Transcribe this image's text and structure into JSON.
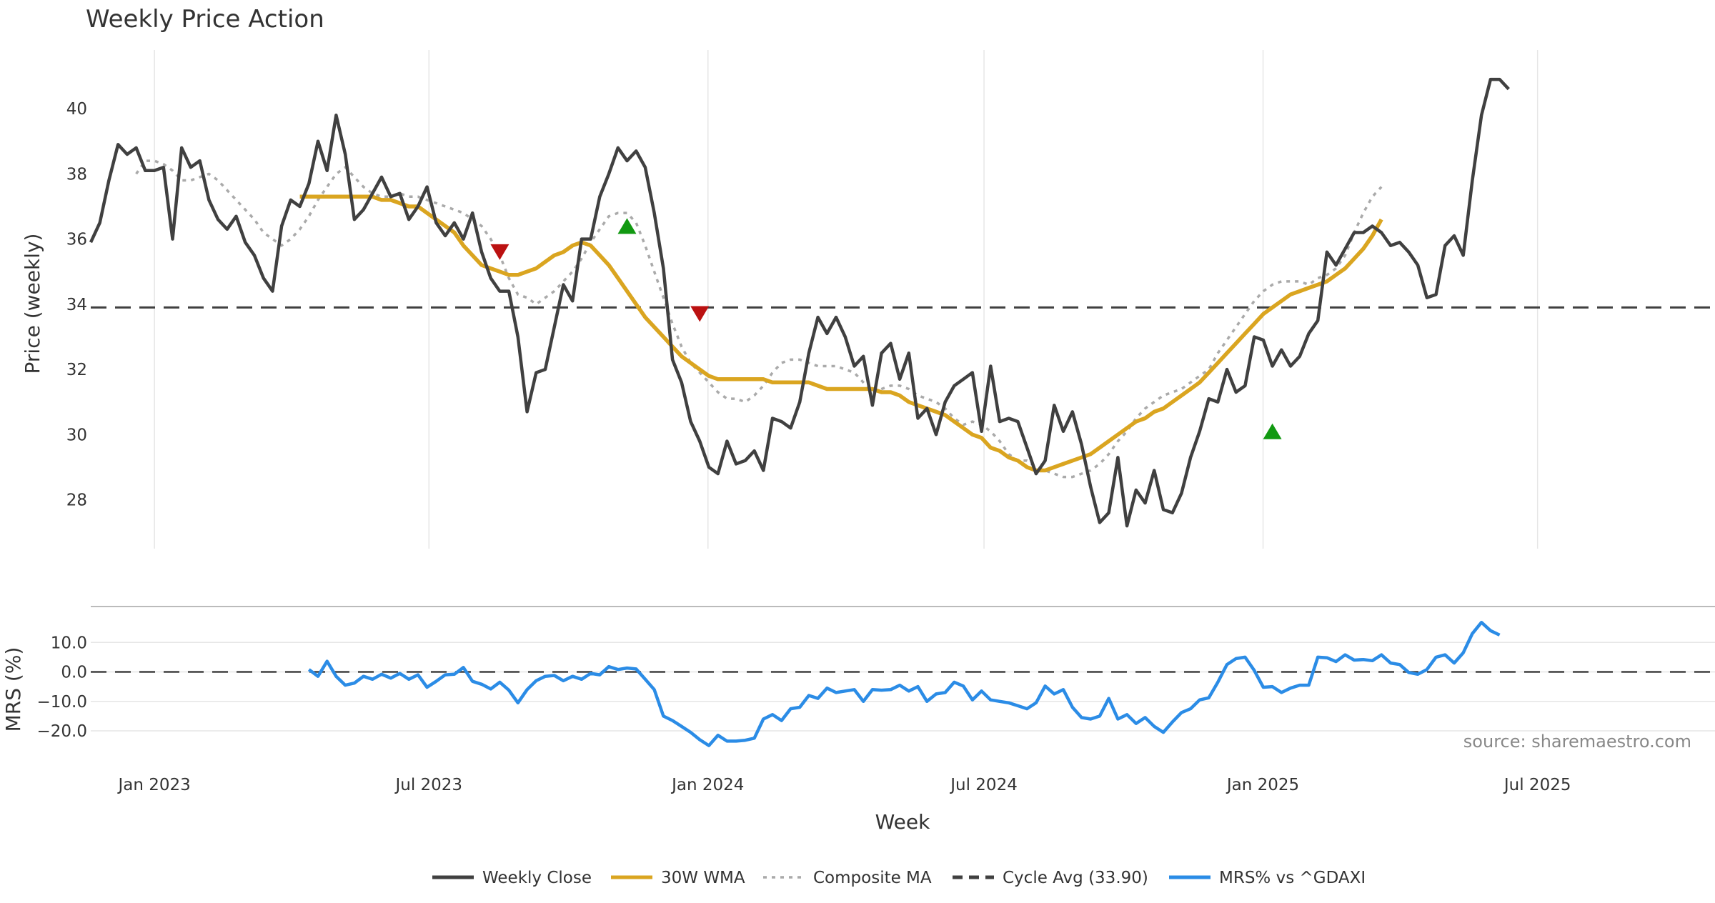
{
  "chart_data": {
    "type": "line",
    "title": "Weekly Price Action",
    "xlabel": "Week",
    "x_tick_labels": [
      "Jan 2023",
      "Jul 2023",
      "Jan 2024",
      "Jul 2024",
      "Jan 2025",
      "Jul 2025"
    ],
    "x_tick_dates": [
      "2023-01-01",
      "2023-07-01",
      "2024-01-01",
      "2024-07-01",
      "2025-01-01",
      "2025-07-01"
    ],
    "x_range": [
      "2022-11-20",
      "2025-10-26"
    ],
    "price_panel": {
      "ylabel": "Price (weekly)",
      "ylim": [
        26.5,
        41.8
      ],
      "y_ticks": [
        "28",
        "30",
        "32",
        "34",
        "36",
        "38",
        "40"
      ],
      "weekly_close": [
        35.9,
        36.5,
        37.8,
        38.9,
        38.6,
        38.8,
        38.1,
        38.1,
        38.2,
        36.0,
        38.8,
        38.2,
        38.4,
        37.2,
        36.6,
        36.3,
        36.7,
        35.9,
        35.5,
        34.8,
        34.4,
        36.4,
        37.2,
        37.0,
        37.7,
        39.0,
        38.1,
        39.8,
        38.6,
        36.6,
        36.9,
        37.4,
        37.9,
        37.3,
        37.4,
        36.6,
        37.0,
        37.6,
        36.5,
        36.1,
        36.5,
        36.0,
        36.8,
        35.6,
        34.8,
        34.4,
        34.4,
        33.0,
        30.7,
        31.9,
        32.0,
        33.3,
        34.6,
        34.1,
        36.0,
        36.0,
        37.3,
        38.0,
        38.8,
        38.4,
        38.7,
        38.2,
        36.8,
        35.1,
        32.3,
        31.6,
        30.4,
        29.8,
        29.0,
        28.8,
        29.8,
        29.1,
        29.2,
        29.5,
        28.9,
        30.5,
        30.4,
        30.2,
        31.0,
        32.5,
        33.6,
        33.1,
        33.6,
        33.0,
        32.1,
        32.4,
        30.9,
        32.5,
        32.8,
        31.7,
        32.5,
        30.5,
        30.8,
        30.0,
        31.0,
        31.5,
        31.7,
        31.9,
        30.1,
        32.1,
        30.4,
        30.5,
        30.4,
        29.6,
        28.8,
        29.2,
        30.9,
        30.1,
        30.7,
        29.7,
        28.4,
        27.3,
        27.6,
        29.3,
        27.2,
        28.3,
        27.9,
        28.9,
        27.7,
        27.6,
        28.2,
        29.3,
        30.1,
        31.1,
        31.0,
        32.0,
        31.3,
        31.5,
        33.0,
        32.9,
        32.1,
        32.6,
        32.1,
        32.4,
        33.1,
        33.5,
        35.6,
        35.2,
        35.7,
        36.2,
        36.2,
        36.4,
        36.2,
        35.8,
        35.9,
        35.6,
        35.2,
        34.2,
        34.3,
        35.8,
        36.1,
        35.5,
        37.8,
        39.8,
        40.9,
        40.9,
        40.6
      ],
      "wma_30w": {
        "start_index": 23,
        "values": [
          37.3,
          37.3,
          37.3,
          37.3,
          37.3,
          37.3,
          37.3,
          37.3,
          37.3,
          37.2,
          37.2,
          37.1,
          37.0,
          37.0,
          36.8,
          36.6,
          36.4,
          36.2,
          35.8,
          35.5,
          35.2,
          35.1,
          35.0,
          34.9,
          34.9,
          35.0,
          35.1,
          35.3,
          35.5,
          35.6,
          35.8,
          35.9,
          35.8,
          35.5,
          35.2,
          34.8,
          34.4,
          34.0,
          33.6,
          33.3,
          33.0,
          32.7,
          32.4,
          32.2,
          32.0,
          31.8,
          31.7,
          31.7,
          31.7,
          31.7,
          31.7,
          31.7,
          31.6,
          31.6,
          31.6,
          31.6,
          31.6,
          31.5,
          31.4,
          31.4,
          31.4,
          31.4,
          31.4,
          31.4,
          31.3,
          31.3,
          31.2,
          31.0,
          30.9,
          30.8,
          30.7,
          30.6,
          30.4,
          30.2,
          30.0,
          29.9,
          29.6,
          29.5,
          29.3,
          29.2,
          29.0,
          28.9,
          28.9,
          29.0,
          29.1,
          29.2,
          29.3,
          29.4,
          29.6,
          29.8,
          30.0,
          30.2,
          30.4,
          30.5,
          30.7,
          30.8,
          31.0,
          31.2,
          31.4,
          31.6,
          31.9,
          32.2,
          32.5,
          32.8,
          33.1,
          33.4,
          33.7,
          33.9,
          34.1,
          34.3,
          34.4,
          34.5,
          34.6,
          34.7,
          34.9,
          35.1,
          35.4,
          35.7,
          36.1,
          36.6
        ]
      },
      "composite_ma": {
        "start_index": 5,
        "values": [
          38.0,
          38.4,
          38.4,
          38.3,
          38.1,
          37.8,
          37.8,
          37.9,
          38.0,
          37.8,
          37.5,
          37.2,
          36.9,
          36.6,
          36.2,
          36.0,
          35.8,
          36.0,
          36.3,
          36.7,
          37.2,
          37.6,
          38.0,
          38.2,
          37.9,
          37.6,
          37.4,
          37.3,
          37.3,
          37.4,
          37.3,
          37.3,
          37.2,
          37.1,
          37.0,
          36.9,
          36.8,
          36.6,
          36.4,
          36.0,
          35.5,
          34.8,
          34.3,
          34.2,
          34.0,
          34.2,
          34.4,
          34.7,
          35.0,
          35.4,
          35.9,
          36.3,
          36.7,
          36.8,
          36.8,
          36.5,
          35.8,
          35.0,
          34.2,
          33.4,
          32.7,
          32.2,
          31.9,
          31.6,
          31.3,
          31.1,
          31.1,
          31.0,
          31.2,
          31.5,
          31.9,
          32.2,
          32.3,
          32.3,
          32.2,
          32.1,
          32.1,
          32.1,
          32.0,
          31.9,
          31.6,
          31.3,
          31.4,
          31.5,
          31.5,
          31.4,
          31.2,
          31.1,
          31.0,
          30.8,
          30.5,
          30.3,
          30.4,
          30.3,
          30.1,
          29.8,
          29.4,
          29.2,
          29.2,
          29.0,
          28.9,
          28.8,
          28.7,
          28.7,
          28.8,
          28.9,
          29.1,
          29.4,
          29.8,
          30.1,
          30.5,
          30.8,
          31.0,
          31.2,
          31.3,
          31.4,
          31.6,
          31.8,
          32.0,
          32.5,
          32.9,
          33.3,
          33.7,
          34.1,
          34.4,
          34.6,
          34.7,
          34.7,
          34.7,
          34.6,
          34.8,
          34.9,
          35.1,
          35.5,
          36.2,
          36.8,
          37.3,
          37.6
        ]
      },
      "cycle_avg": 33.9,
      "buy_signals": [
        {
          "index": 59,
          "value": 36.4
        },
        {
          "index": 130,
          "value": 30.1
        }
      ],
      "sell_signals": [
        {
          "index": 45,
          "value": 35.6
        },
        {
          "index": 67,
          "value": 33.7
        }
      ]
    },
    "mrs_panel": {
      "ylabel": "MRS (%)",
      "ylim": [
        -28,
        20
      ],
      "y_ticks": [
        "10.0",
        "0.0",
        "−10.0",
        "−20.0"
      ],
      "start_index": 24,
      "values": [
        0.8,
        -1.5,
        3.6,
        -1.5,
        -4.5,
        -3.8,
        -1.5,
        -2.5,
        -0.8,
        -2.1,
        -0.5,
        -2.5,
        -1.0,
        -5.2,
        -3.2,
        -1.0,
        -0.8,
        1.5,
        -3.2,
        -4.2,
        -5.8,
        -3.5,
        -6.2,
        -10.5,
        -6.0,
        -3.0,
        -1.5,
        -1.2,
        -3.0,
        -1.5,
        -2.5,
        -0.5,
        -1.0,
        1.8,
        0.8,
        1.3,
        1.0,
        -2.5,
        -6.0,
        -15.0,
        -16.5,
        -18.5,
        -20.5,
        -23.0,
        -25.0,
        -21.5,
        -23.5,
        -23.5,
        -23.2,
        -22.5,
        -16.0,
        -14.5,
        -16.5,
        -12.5,
        -12.0,
        -8.0,
        -9.0,
        -5.5,
        -7.0,
        -6.5,
        -6.0,
        -10.0,
        -6.0,
        -6.2,
        -6.0,
        -4.5,
        -6.5,
        -5.0,
        -10.0,
        -7.5,
        -7.0,
        -3.5,
        -4.8,
        -9.5,
        -6.5,
        -9.5,
        -10.0,
        -10.5,
        -11.5,
        -12.5,
        -10.5,
        -4.8,
        -7.5,
        -6.0,
        -12.0,
        -15.5,
        -16.0,
        -15.0,
        -9.0,
        -16.0,
        -14.5,
        -17.5,
        -15.5,
        -18.5,
        -20.5,
        -17.0,
        -13.8,
        -12.5,
        -9.5,
        -8.8,
        -3.5,
        2.5,
        4.5,
        5.0,
        0.5,
        -5.2,
        -5.0,
        -7.0,
        -5.5,
        -4.5,
        -4.5,
        5.0,
        4.8,
        3.5,
        5.8,
        4.0,
        4.2,
        3.8,
        5.8,
        3.0,
        2.5,
        -0.2,
        -0.8,
        0.8,
        5.0,
        5.8,
        3.0,
        6.5,
        13.0,
        16.8,
        14.0,
        12.5
      ]
    },
    "source": "source: sharemaestro.com",
    "legend": [
      {
        "key": "close",
        "label": "Weekly Close",
        "color": "#404040",
        "dash": "solid"
      },
      {
        "key": "wma",
        "label": "30W WMA",
        "color": "#DAA520",
        "dash": "solid"
      },
      {
        "key": "composite",
        "label": "Composite MA",
        "color": "#AAAAAA",
        "dash": "dotted"
      },
      {
        "key": "cycle",
        "label": "Cycle Avg (33.90)",
        "color": "#404040",
        "dash": "dashed"
      },
      {
        "key": "mrs",
        "label": "MRS% vs ^GDAXI",
        "color": "#2B8CE6",
        "dash": "solid"
      }
    ],
    "colors": {
      "buy": "#119911",
      "sell": "#BB1111",
      "grid": "#E6E6E6",
      "baseline": "#BBBBBB"
    }
  }
}
